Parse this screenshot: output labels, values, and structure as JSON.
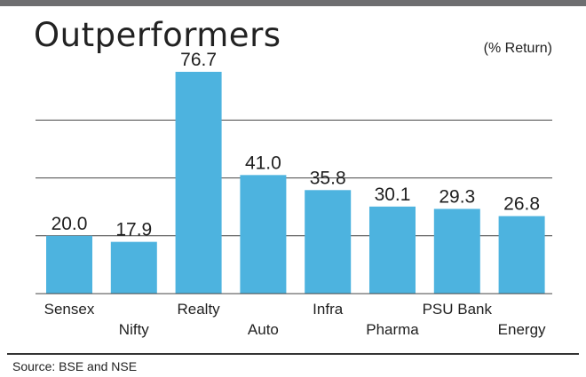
{
  "header": {
    "title": "Outperformers",
    "unit": "(% Return)"
  },
  "footer": {
    "source": "Source: BSE and NSE"
  },
  "colors": {
    "bar": "#4db3df",
    "grid": "#444444",
    "topbar": "#6e6e70"
  },
  "chart_data": {
    "type": "bar",
    "title": "Outperformers",
    "ylabel": "(% Return)",
    "categories": [
      "Sensex",
      "Nifty",
      "Realty",
      "Auto",
      "Infra",
      "Pharma",
      "PSU Bank",
      "Energy"
    ],
    "values": [
      20.0,
      17.9,
      76.7,
      41.0,
      35.8,
      30.1,
      29.3,
      26.8
    ],
    "value_labels": [
      "20.0",
      "17.9",
      "76.7",
      "41.0",
      "35.8",
      "30.1",
      "29.3",
      "26.8"
    ],
    "ylim": [
      0,
      80
    ],
    "grid": true,
    "legend": "none"
  }
}
